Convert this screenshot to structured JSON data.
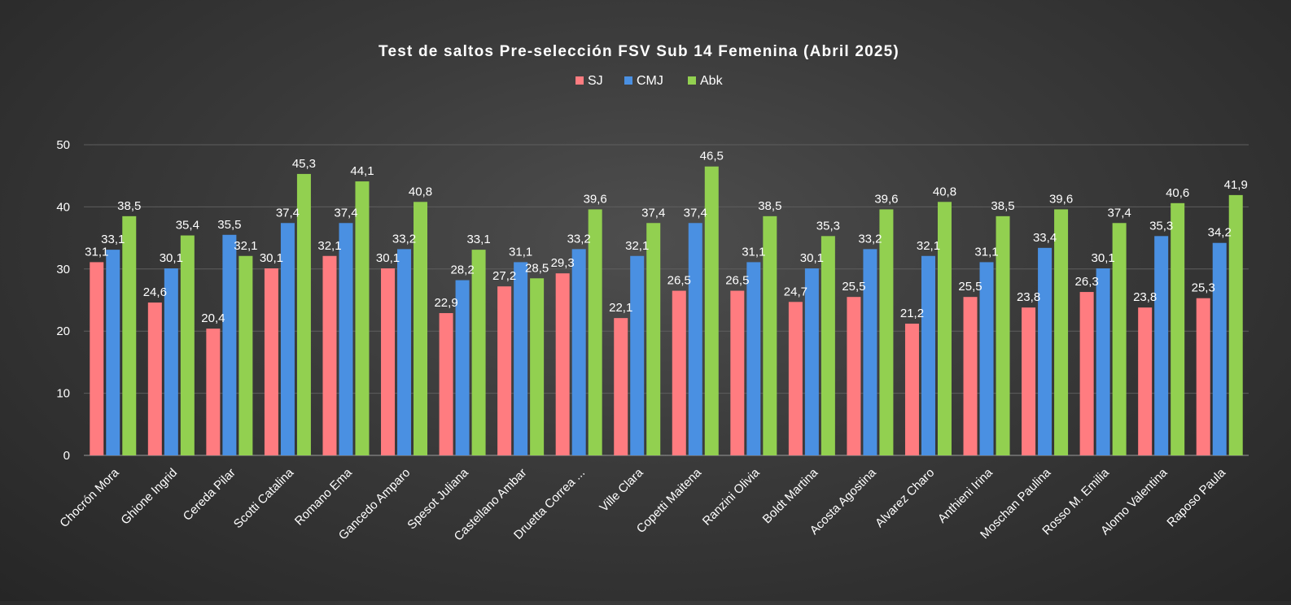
{
  "chart_data": {
    "type": "bar",
    "title": "Test de saltos Pre-selección FSV Sub 14 Femenina (Abril 2025)",
    "xlabel": "",
    "ylabel": "",
    "ylim": [
      0,
      50
    ],
    "yticks": [
      0,
      10,
      20,
      30,
      40,
      50
    ],
    "grid": true,
    "legend_position": "top-center",
    "categories": [
      "Chocrón Mora",
      "Ghione Ingrid",
      "Cereda Pilar",
      "Scotti Catalina",
      "Romano Ema",
      "Gancedo Amparo",
      "Spesot Juliana",
      "Castellano Ambar",
      "Druetta Correa ...",
      "Ville Clara",
      "Copetti Maitena",
      "Ranzini Olivia",
      "Boldt Martina",
      "Acosta Agostina",
      "Alvarez Charo",
      "Anthieni Irina",
      "Moschan Paulina",
      "Rosso M. Emilia",
      "Alomo Valentina",
      "Raposo Paula"
    ],
    "series": [
      {
        "name": "SJ",
        "color": "#ff7c80",
        "values": [
          31.1,
          24.6,
          20.4,
          30.1,
          32.1,
          30.1,
          22.9,
          27.2,
          29.3,
          22.1,
          26.5,
          26.5,
          24.7,
          25.5,
          21.2,
          25.5,
          23.8,
          26.3,
          23.8,
          25.3
        ]
      },
      {
        "name": "CMJ",
        "color": "#4a90e2",
        "values": [
          33.1,
          30.1,
          35.5,
          37.4,
          37.4,
          33.2,
          28.2,
          31.1,
          33.2,
          32.1,
          37.4,
          31.1,
          30.1,
          33.2,
          32.1,
          31.1,
          33.4,
          30.1,
          35.3,
          34.2
        ]
      },
      {
        "name": "Abk",
        "color": "#92d050",
        "values": [
          38.5,
          35.4,
          32.1,
          45.3,
          44.1,
          40.8,
          33.1,
          28.5,
          39.6,
          37.4,
          46.5,
          38.5,
          35.3,
          39.6,
          40.8,
          38.5,
          39.6,
          37.4,
          40.6,
          41.9
        ]
      }
    ],
    "decimal_separator": ","
  }
}
